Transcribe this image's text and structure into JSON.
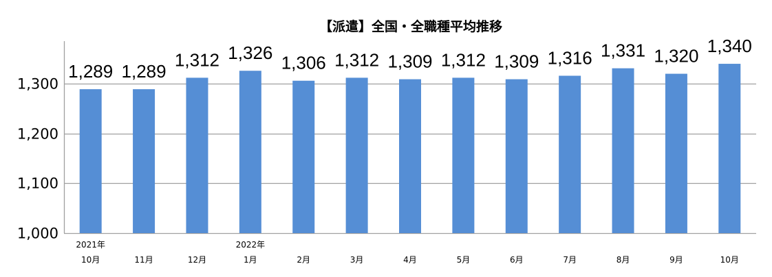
{
  "chart_data": {
    "type": "bar",
    "title": "【派遣】全国・全職種平均推移",
    "categories": [
      "10月",
      "11月",
      "12月",
      "1月",
      "2月",
      "3月",
      "4月",
      "5月",
      "6月",
      "7月",
      "8月",
      "9月",
      "10月"
    ],
    "year_labels": [
      {
        "label": "2021年",
        "at": 0
      },
      {
        "label": "2022年",
        "at": 3
      }
    ],
    "values": [
      1289,
      1289,
      1312,
      1326,
      1306,
      1312,
      1309,
      1312,
      1309,
      1316,
      1331,
      1320,
      1340
    ],
    "data_labels": [
      "1,289",
      "1,289",
      "1,312",
      "1,326",
      "1,306",
      "1,312",
      "1,309",
      "1,312",
      "1,309",
      "1,316",
      "1,331",
      "1,320",
      "1,340"
    ],
    "yticks": [
      1000,
      1100,
      1200,
      1300
    ],
    "ytick_labels": [
      "1,000",
      "1,100",
      "1,200",
      "1,300"
    ],
    "ylim": [
      1000,
      1380
    ],
    "grid": true,
    "legend": null,
    "colors": {
      "bar": "#558ED5",
      "gridline": "#A0A0A0",
      "axis": "#A0A0A0",
      "text": "#000000"
    }
  }
}
